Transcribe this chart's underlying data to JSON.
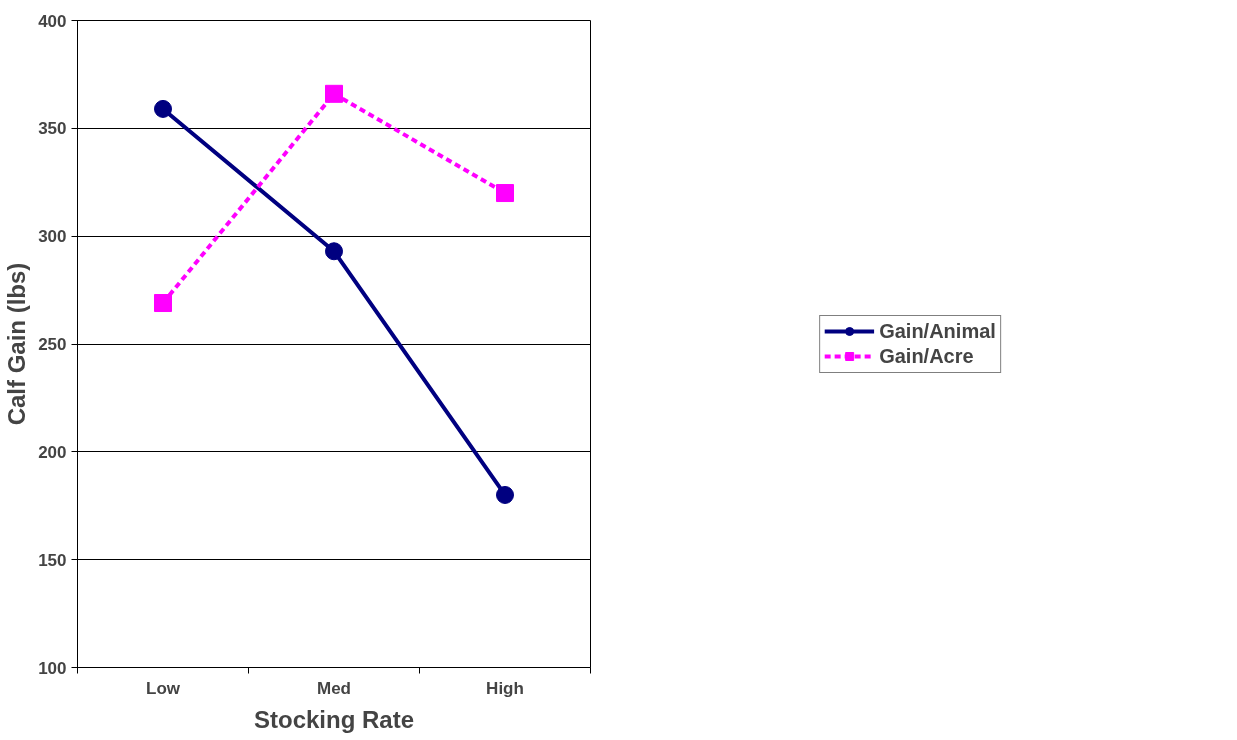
{
  "chart_data": {
    "type": "line",
    "xlabel": "Stocking Rate",
    "ylabel": "Calf Gain (lbs)",
    "categories": [
      "Low",
      "Med",
      "High"
    ],
    "series": [
      {
        "name": "Gain/Animal",
        "color": "#000080",
        "values": [
          359,
          293,
          180
        ],
        "marker": "circle",
        "line_style": "solid"
      },
      {
        "name": "Gain/Acre",
        "color": "#ff00ff",
        "values": [
          269,
          366,
          320
        ],
        "marker": "square",
        "line_style": "dashed"
      }
    ],
    "ylim": [
      100,
      400
    ],
    "yticks": [
      100,
      150,
      200,
      250,
      300,
      350,
      400
    ],
    "grid": "y",
    "legend": "right"
  }
}
